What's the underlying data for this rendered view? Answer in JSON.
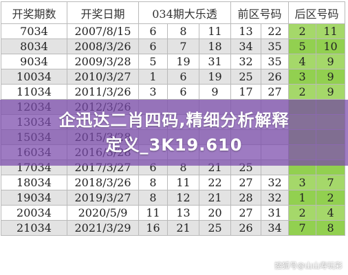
{
  "table": {
    "headers": [
      "开奖期数",
      "开奖日期",
      "034期大乐透",
      "",
      "",
      "前区号码",
      "",
      "后区号码",
      ""
    ],
    "rows": [
      [
        "7034",
        "2007/8/15",
        "6",
        "8",
        "11",
        "13",
        "22",
        "2",
        "11"
      ],
      [
        "8034",
        "2008/3/26",
        "6",
        "7",
        "18",
        "34",
        "35",
        "5",
        "10"
      ],
      [
        "9034",
        "2009/3/28",
        "5",
        "19",
        "31",
        "32",
        "35",
        "4",
        "9"
      ],
      [
        "10034",
        "2010/3/27",
        "1",
        "6",
        "19",
        "25",
        "26",
        "3",
        "9"
      ],
      [
        "11034",
        "2011/3/26",
        "3",
        "6",
        "9",
        "17",
        "27",
        "2",
        "9"
      ],
      [
        "12034",
        "2012/3/26",
        "",
        "",
        "",
        "",
        "",
        "",
        ""
      ],
      [
        "13034",
        "",
        "",
        "",
        "",
        "",
        "",
        "",
        ""
      ],
      [
        "15034",
        "2015/3/28",
        "",
        "",
        "",
        "",
        "",
        "",
        ""
      ],
      [
        "16034",
        "2016/3/28",
        "",
        "",
        "",
        "",
        "",
        "",
        ""
      ],
      [
        "17034",
        "2017/3/27",
        "6",
        "8",
        "21",
        "25",
        "",
        "",
        ""
      ],
      [
        "18034",
        "2018/3/26",
        "8",
        "11",
        "22",
        "27",
        "32",
        "3",
        "7"
      ],
      [
        "19034",
        "2019/3/27",
        "8",
        "12",
        "21",
        "28",
        "32",
        "1",
        "2"
      ],
      [
        "20034",
        "2020/5/9",
        "11",
        "13",
        "20",
        "27",
        "31",
        "2",
        "4"
      ],
      [
        "21034",
        "2021/3/29",
        "16",
        "21",
        "25",
        "26",
        "34",
        "7",
        "8"
      ]
    ]
  },
  "overlay": {
    "line1": "企迅达二肖四码,精细分析解释",
    "line2": "定义_3K19.610"
  },
  "watermark": {
    "text": "搜狐号@山山寿玩彩"
  },
  "colors": {
    "back_zone": "#92d050",
    "banner": "#7848aa",
    "row_alt": "#e3e3e3"
  }
}
